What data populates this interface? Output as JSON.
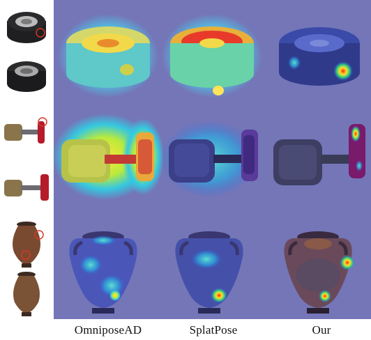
{
  "figure": {
    "column_labels": [
      "OmniposeAD",
      "SplatPose",
      "Our"
    ],
    "rows": [
      "tire",
      "valve",
      "vase"
    ],
    "colors": {
      "panel_background": "#7476B8",
      "tire_dark": "#1c1c1e",
      "valve_metal": "#9a8257",
      "valve_handle": "#b51b2b",
      "vase_body": "#7a4a30",
      "anomaly_marker": "#d8362a"
    }
  }
}
